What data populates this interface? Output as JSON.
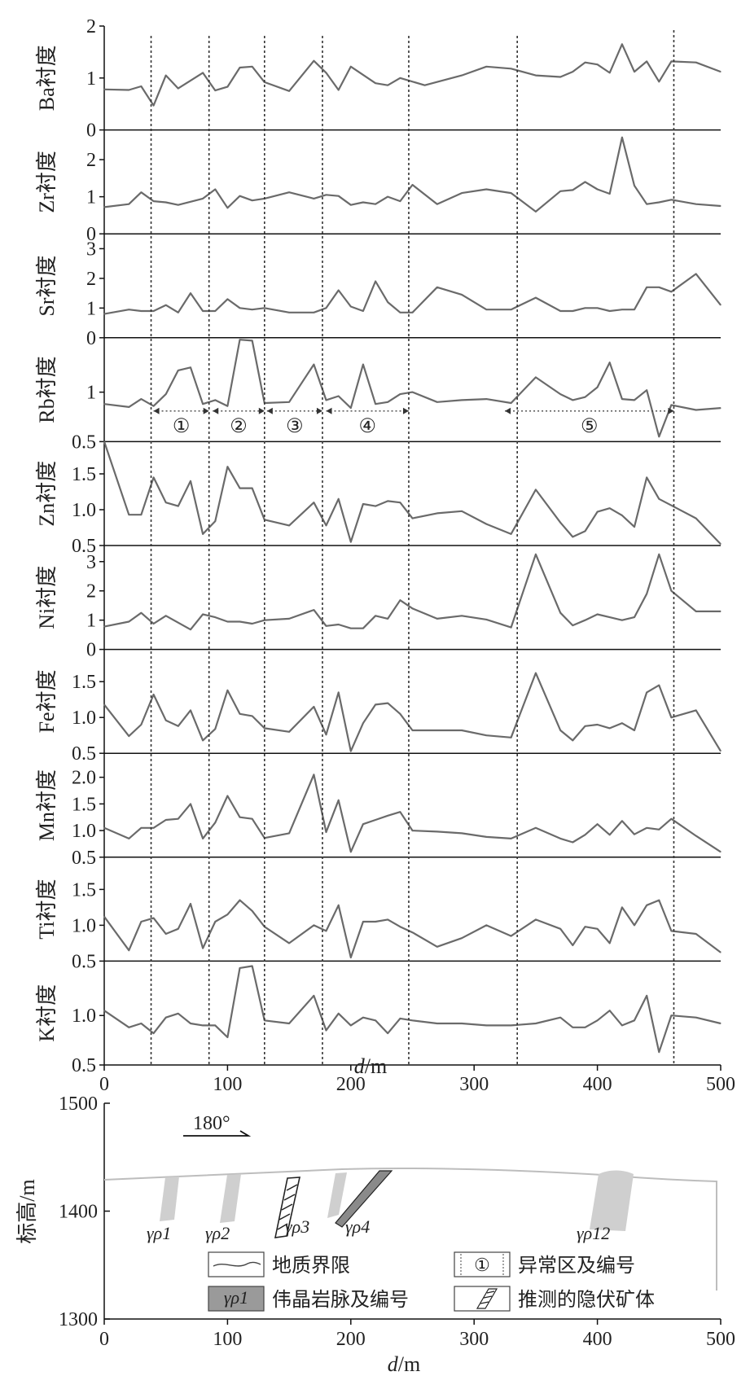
{
  "colors": {
    "line": "#6a6a6a",
    "axis": "#111111",
    "dotted": "#333333",
    "dike": "#c9c9c9",
    "ground": "#bdbdbd"
  },
  "chart_data": [
    {
      "type": "line",
      "ylabel": "Ba衬度",
      "ylim": [
        0,
        2
      ],
      "yticks": [
        "0",
        "1",
        "2"
      ],
      "x": [
        0,
        20,
        30,
        40,
        50,
        60,
        80,
        90,
        100,
        110,
        120,
        130,
        150,
        170,
        180,
        190,
        200,
        220,
        230,
        240,
        260,
        290,
        310,
        330,
        350,
        370,
        380,
        390,
        400,
        410,
        420,
        430,
        440,
        450,
        460,
        480,
        500
      ],
      "values": [
        0.78,
        0.77,
        0.84,
        0.47,
        1.05,
        0.8,
        1.1,
        0.76,
        0.83,
        1.2,
        1.22,
        0.92,
        0.75,
        1.33,
        1.1,
        0.77,
        1.22,
        0.9,
        0.86,
        1.0,
        0.86,
        1.05,
        1.22,
        1.18,
        1.05,
        1.02,
        1.12,
        1.3,
        1.26,
        1.1,
        1.65,
        1.12,
        1.32,
        0.93,
        1.32,
        1.3,
        1.12
      ]
    },
    {
      "type": "line",
      "ylabel": "Zr衬度",
      "ylim": [
        0,
        2.8
      ],
      "yticks": [
        "0",
        "1",
        "2"
      ],
      "x": [
        0,
        20,
        30,
        40,
        50,
        60,
        80,
        90,
        100,
        110,
        120,
        130,
        150,
        170,
        180,
        190,
        200,
        210,
        220,
        230,
        240,
        250,
        270,
        290,
        310,
        330,
        350,
        370,
        380,
        390,
        400,
        410,
        420,
        430,
        440,
        450,
        460,
        480,
        500
      ],
      "values": [
        0.72,
        0.8,
        1.12,
        0.88,
        0.85,
        0.78,
        0.95,
        1.2,
        0.7,
        1.02,
        0.9,
        0.95,
        1.12,
        0.95,
        1.05,
        1.02,
        0.78,
        0.85,
        0.8,
        1.0,
        0.88,
        1.32,
        0.8,
        1.1,
        1.2,
        1.1,
        0.6,
        1.15,
        1.18,
        1.4,
        1.2,
        1.08,
        2.6,
        1.3,
        0.8,
        0.85,
        0.92,
        0.8,
        0.75
      ]
    },
    {
      "type": "line",
      "ylabel": "Sr衬度",
      "ylim": [
        0,
        3.5
      ],
      "yticks": [
        "0",
        "1",
        "2",
        "3"
      ],
      "x": [
        0,
        20,
        30,
        40,
        50,
        60,
        70,
        80,
        90,
        100,
        110,
        120,
        130,
        150,
        170,
        180,
        190,
        200,
        210,
        220,
        230,
        240,
        250,
        270,
        290,
        310,
        330,
        350,
        370,
        380,
        390,
        400,
        410,
        420,
        430,
        440,
        450,
        460,
        480,
        500
      ],
      "values": [
        0.8,
        0.95,
        0.9,
        0.9,
        1.1,
        0.85,
        1.5,
        0.9,
        0.9,
        1.3,
        1.0,
        0.95,
        1.0,
        0.85,
        0.85,
        1.0,
        1.6,
        1.05,
        0.9,
        1.9,
        1.2,
        0.85,
        0.85,
        1.7,
        1.45,
        0.95,
        0.95,
        1.35,
        0.9,
        0.9,
        1.0,
        1.0,
        0.9,
        0.95,
        0.95,
        1.7,
        1.7,
        1.55,
        2.15,
        1.1
      ]
    },
    {
      "type": "line",
      "ylabel": "Rb衬度",
      "ylim": [
        0.5,
        1.55
      ],
      "yticks": [
        "0.5",
        "1"
      ],
      "x": [
        0,
        20,
        30,
        40,
        50,
        60,
        70,
        80,
        90,
        100,
        110,
        120,
        130,
        150,
        170,
        180,
        190,
        200,
        210,
        220,
        230,
        240,
        250,
        270,
        290,
        310,
        330,
        350,
        370,
        380,
        390,
        400,
        410,
        420,
        430,
        440,
        450,
        460,
        480,
        500
      ],
      "values": [
        0.88,
        0.85,
        0.93,
        0.86,
        0.98,
        1.22,
        1.25,
        0.88,
        0.92,
        0.86,
        1.53,
        1.52,
        0.89,
        0.9,
        1.28,
        0.92,
        0.96,
        0.84,
        1.28,
        0.88,
        0.9,
        0.98,
        1.0,
        0.9,
        0.92,
        0.93,
        0.89,
        1.15,
        0.98,
        0.92,
        0.95,
        1.05,
        1.3,
        0.93,
        0.92,
        1.02,
        0.55,
        0.87,
        0.82,
        0.84
      ]
    },
    {
      "type": "line",
      "ylabel": "Zn衬度",
      "ylim": [
        0.5,
        1.95
      ],
      "yticks": [
        "0.5",
        "1.0",
        "1.5"
      ],
      "x": [
        0,
        20,
        30,
        40,
        50,
        60,
        70,
        80,
        90,
        100,
        110,
        120,
        130,
        150,
        170,
        180,
        190,
        200,
        210,
        220,
        230,
        240,
        250,
        270,
        290,
        310,
        330,
        350,
        370,
        380,
        390,
        400,
        410,
        420,
        430,
        440,
        450,
        460,
        480,
        500
      ],
      "values": [
        1.95,
        0.93,
        0.93,
        1.45,
        1.1,
        1.05,
        1.4,
        0.66,
        0.84,
        1.6,
        1.3,
        1.3,
        0.86,
        0.78,
        1.1,
        0.78,
        1.15,
        0.55,
        1.08,
        1.05,
        1.12,
        1.1,
        0.88,
        0.95,
        0.98,
        0.8,
        0.66,
        1.28,
        0.82,
        0.62,
        0.7,
        0.97,
        1.02,
        0.92,
        0.76,
        1.45,
        1.15,
        1.06,
        0.88,
        0.52
      ]
    },
    {
      "type": "line",
      "ylabel": "Ni衬度",
      "ylim": [
        0,
        3.55
      ],
      "yticks": [
        "0",
        "1",
        "2",
        "3"
      ],
      "x": [
        0,
        20,
        30,
        40,
        50,
        70,
        80,
        90,
        100,
        110,
        120,
        130,
        150,
        170,
        180,
        190,
        200,
        210,
        220,
        230,
        240,
        250,
        270,
        290,
        310,
        330,
        350,
        370,
        380,
        390,
        400,
        410,
        420,
        430,
        440,
        450,
        460,
        480,
        500
      ],
      "values": [
        0.78,
        0.95,
        1.25,
        0.88,
        1.15,
        0.68,
        1.2,
        1.1,
        0.95,
        0.95,
        0.88,
        1.0,
        1.05,
        1.35,
        0.8,
        0.85,
        0.72,
        0.72,
        1.15,
        1.05,
        1.68,
        1.4,
        1.05,
        1.15,
        1.02,
        0.75,
        3.25,
        1.25,
        0.82,
        1.0,
        1.2,
        1.1,
        1.0,
        1.1,
        1.9,
        3.25,
        2.0,
        1.3,
        1.3
      ]
    },
    {
      "type": "line",
      "ylabel": "Fe衬度",
      "ylim": [
        0.5,
        1.95
      ],
      "yticks": [
        "0.5",
        "1.0",
        "1.5"
      ],
      "x": [
        0,
        20,
        30,
        40,
        50,
        60,
        70,
        80,
        90,
        100,
        110,
        120,
        130,
        150,
        170,
        180,
        190,
        200,
        210,
        220,
        230,
        240,
        250,
        270,
        290,
        310,
        330,
        350,
        370,
        380,
        390,
        400,
        410,
        420,
        430,
        440,
        450,
        460,
        480,
        500
      ],
      "values": [
        1.18,
        0.74,
        0.9,
        1.32,
        0.96,
        0.88,
        1.1,
        0.68,
        0.84,
        1.38,
        1.05,
        1.02,
        0.85,
        0.8,
        1.15,
        0.76,
        1.35,
        0.53,
        0.92,
        1.18,
        1.2,
        1.05,
        0.82,
        0.82,
        0.82,
        0.75,
        0.72,
        1.62,
        0.82,
        0.68,
        0.88,
        0.9,
        0.85,
        0.92,
        0.82,
        1.35,
        1.45,
        1.0,
        1.1,
        0.53
      ]
    },
    {
      "type": "line",
      "ylabel": "Mn衬度",
      "ylim": [
        0.5,
        2.45
      ],
      "yticks": [
        "0.5",
        "1.0",
        "1.5",
        "2.0"
      ],
      "x": [
        0,
        20,
        30,
        40,
        50,
        60,
        70,
        80,
        90,
        100,
        110,
        120,
        130,
        150,
        170,
        180,
        190,
        200,
        210,
        220,
        230,
        240,
        250,
        270,
        290,
        310,
        330,
        350,
        370,
        380,
        390,
        400,
        410,
        420,
        430,
        440,
        450,
        460,
        480,
        500
      ],
      "values": [
        1.05,
        0.85,
        1.05,
        1.05,
        1.2,
        1.22,
        1.5,
        0.85,
        1.15,
        1.65,
        1.25,
        1.22,
        0.86,
        0.95,
        2.05,
        0.97,
        1.57,
        0.6,
        1.12,
        1.2,
        1.28,
        1.35,
        1.0,
        0.98,
        0.95,
        0.88,
        0.85,
        1.05,
        0.85,
        0.78,
        0.92,
        1.12,
        0.92,
        1.18,
        0.93,
        1.05,
        1.02,
        1.22,
        0.9,
        0.6
      ]
    },
    {
      "type": "line",
      "ylabel": "Ti衬度",
      "ylim": [
        0.5,
        1.95
      ],
      "yticks": [
        "0.5",
        "1.0",
        "1.5"
      ],
      "x": [
        0,
        20,
        30,
        40,
        50,
        60,
        70,
        80,
        90,
        100,
        110,
        120,
        130,
        150,
        170,
        180,
        190,
        200,
        210,
        220,
        230,
        240,
        250,
        270,
        290,
        310,
        330,
        350,
        370,
        380,
        390,
        400,
        410,
        420,
        430,
        440,
        450,
        460,
        480,
        500
      ],
      "values": [
        1.12,
        0.65,
        1.05,
        1.1,
        0.88,
        0.95,
        1.3,
        0.68,
        1.05,
        1.15,
        1.35,
        1.2,
        0.98,
        0.75,
        1.0,
        0.92,
        1.28,
        0.55,
        1.05,
        1.05,
        1.08,
        0.98,
        0.9,
        0.7,
        0.82,
        1.0,
        0.85,
        1.08,
        0.95,
        0.72,
        0.98,
        0.95,
        0.75,
        1.25,
        1.0,
        1.28,
        1.35,
        0.92,
        0.88,
        0.62
      ]
    },
    {
      "type": "line",
      "ylabel": "K衬度",
      "ylim": [
        0.5,
        1.55
      ],
      "yticks": [
        "0.5",
        "1.0"
      ],
      "x": [
        0,
        20,
        30,
        40,
        50,
        60,
        70,
        80,
        90,
        100,
        110,
        120,
        130,
        150,
        170,
        180,
        190,
        200,
        210,
        220,
        230,
        240,
        250,
        270,
        290,
        310,
        330,
        350,
        370,
        380,
        390,
        400,
        410,
        420,
        430,
        440,
        450,
        460,
        480,
        500
      ],
      "values": [
        1.05,
        0.88,
        0.92,
        0.82,
        0.98,
        1.02,
        0.92,
        0.9,
        0.9,
        0.78,
        1.48,
        1.5,
        0.95,
        0.92,
        1.2,
        0.85,
        1.02,
        0.9,
        0.98,
        0.95,
        0.82,
        0.97,
        0.95,
        0.92,
        0.92,
        0.9,
        0.9,
        0.92,
        0.98,
        0.88,
        0.88,
        0.95,
        1.05,
        0.9,
        0.95,
        1.2,
        0.63,
        1.0,
        0.98,
        0.92
      ]
    }
  ],
  "axis": {
    "xlim": [
      0,
      500
    ],
    "xticks": [
      "0",
      "100",
      "200",
      "300",
      "400",
      "500"
    ],
    "xlabel_italic": "d",
    "xlabel_unit": "/m"
  },
  "boundaries_x": [
    38,
    85,
    130,
    177,
    247,
    335,
    462
  ],
  "anomaly_zones": [
    {
      "label": "①",
      "from": 40,
      "to": 85
    },
    {
      "label": "②",
      "from": 88,
      "to": 130
    },
    {
      "label": "③",
      "from": 132,
      "to": 177
    },
    {
      "label": "④",
      "from": 180,
      "to": 247
    },
    {
      "label": "⑤",
      "from": 325,
      "to": 462
    }
  ],
  "section": {
    "ylabel": "标高/m",
    "ylim": [
      1300,
      1500
    ],
    "yticks": [
      "1500",
      "1400",
      "1300"
    ],
    "direction_label": "180°",
    "dikes": [
      {
        "label": "γρ1",
        "x": 50
      },
      {
        "label": "γρ2",
        "x": 102
      },
      {
        "label": "γρ3",
        "x": 155
      },
      {
        "label": "γρ4",
        "x": 192
      },
      {
        "label": "γρ12",
        "x": 405
      }
    ],
    "legend": [
      {
        "symbol_text": "",
        "text": "地质界限"
      },
      {
        "symbol_text": "①",
        "text": "异常区及编号"
      },
      {
        "symbol_text": "γρ1",
        "text": "伟晶岩脉及编号"
      },
      {
        "symbol_text": "",
        "text": "推测的隐伏矿体"
      }
    ]
  }
}
